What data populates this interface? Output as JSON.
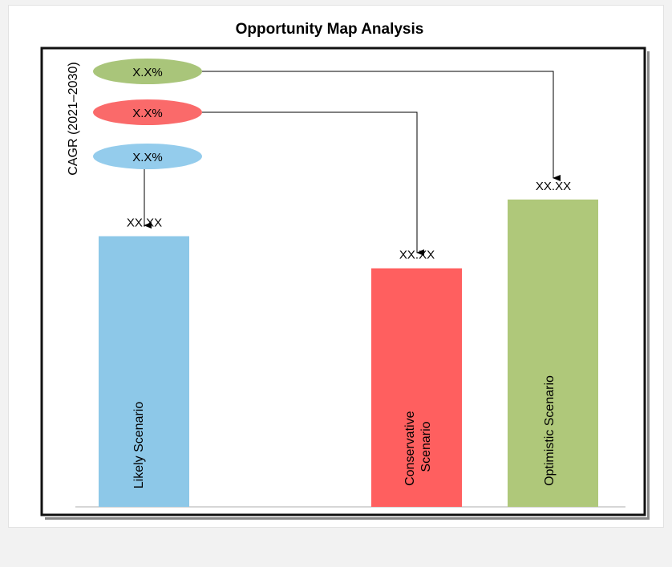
{
  "chart_data": {
    "type": "bar",
    "title": "Opportunity Map Analysis",
    "ylabel": "CAGR (2021–2030)",
    "categories": [
      "Likely Scenario",
      "Conservative Scenario",
      "Optimistic Scenario"
    ],
    "value_labels": [
      "XX.XX",
      "XX.XX",
      "XX.XX"
    ],
    "relative_values": [
      0.59,
      0.52,
      0.67
    ],
    "cagr_labels": [
      "X.X%",
      "X.X%",
      "X.X%"
    ],
    "grid": false,
    "colors": {
      "likely": "#8dc8e8",
      "conservative": "#ff5f5f",
      "optimistic": "#afc87a",
      "bubble_likely": "#94ccec",
      "bubble_conservative": "#fa6a6a",
      "bubble_optimistic": "#a9c57a",
      "axis": "#c8c8c8",
      "arrow": "#000000"
    }
  }
}
